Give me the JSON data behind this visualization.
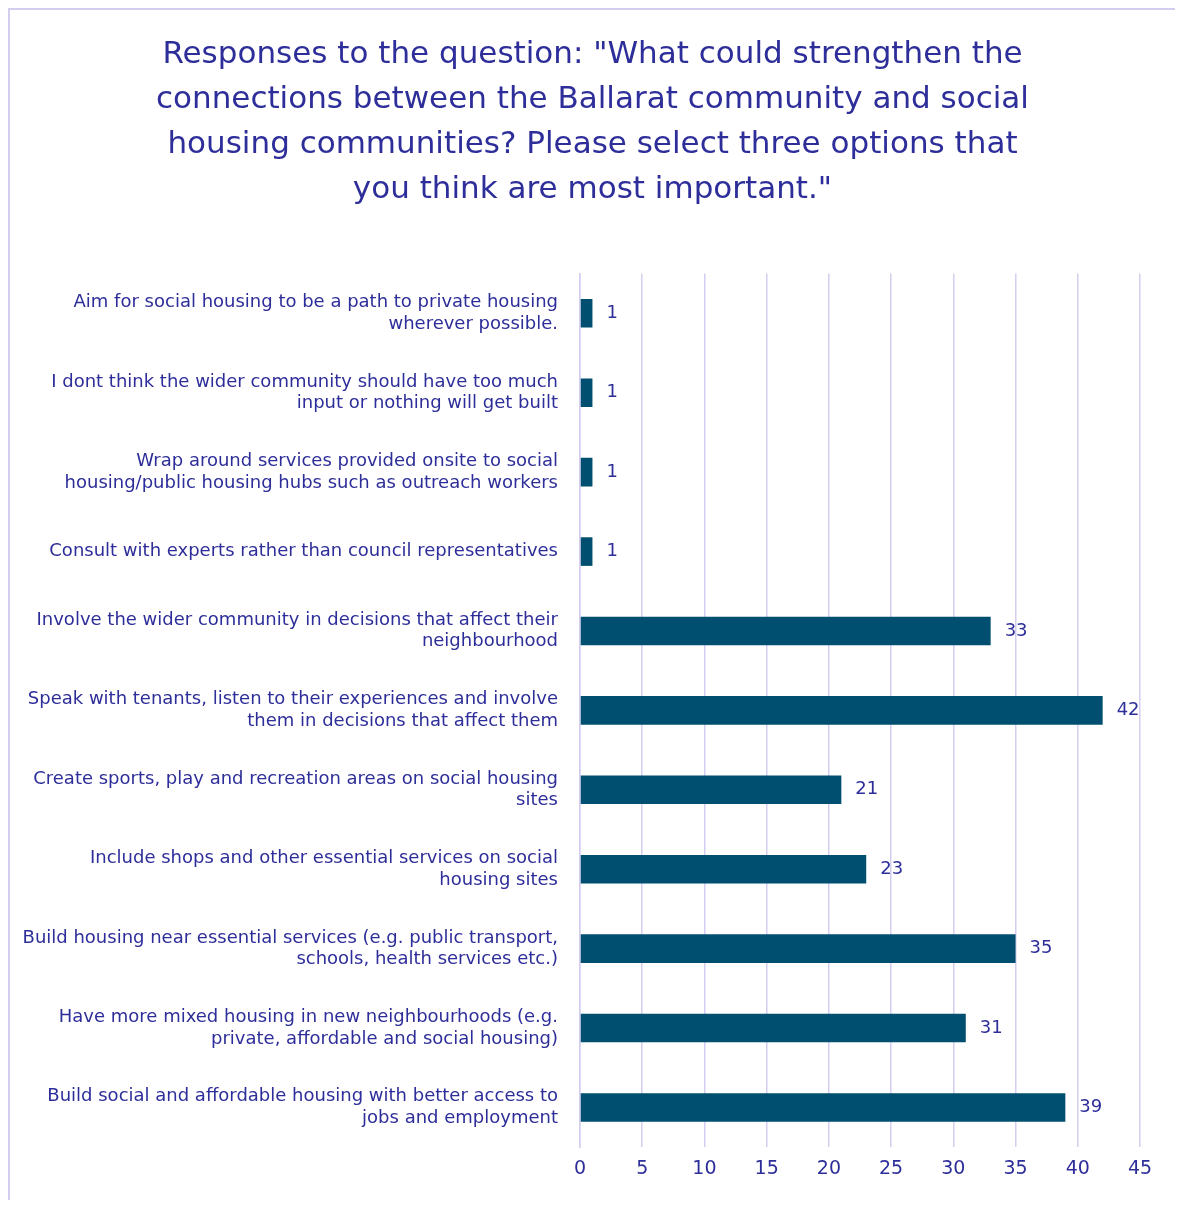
{
  "chart_data": {
    "type": "bar",
    "orientation": "horizontal",
    "title": "Responses to the question: \"What could strengthen the connections between the Ballarat community and social housing communities? Please select three options that you think are most important.\"",
    "categories": [
      "Aim for social housing to be a path to private housing wherever possible.",
      "I dont think the wider community should have too much input or nothing will get built",
      "Wrap around services provided onsite to social housing/public housing hubs such as outreach workers",
      "Consult with experts rather than council representatives",
      "Involve the wider community in decisions that affect their neighbourhood",
      "Speak with tenants, listen to their experiences and involve them in decisions that affect them",
      "Create sports, play and recreation areas on social housing sites",
      "Include shops and other essential services on social housing sites",
      "Build housing near essential services (e.g. public transport, schools, health services etc.)",
      "Have more mixed housing in new neighbourhoods (e.g. private, affordable and social housing)",
      "Build social and affordable housing with better access to jobs and employment"
    ],
    "values": [
      1,
      1,
      1,
      1,
      33,
      42,
      21,
      23,
      35,
      31,
      39
    ],
    "color": "#004f71",
    "xlim": [
      0,
      45
    ],
    "xticks": [
      0,
      5,
      10,
      15,
      20,
      25,
      30,
      35,
      40,
      45
    ],
    "grid": "x",
    "legend": false,
    "data_labels": true
  }
}
